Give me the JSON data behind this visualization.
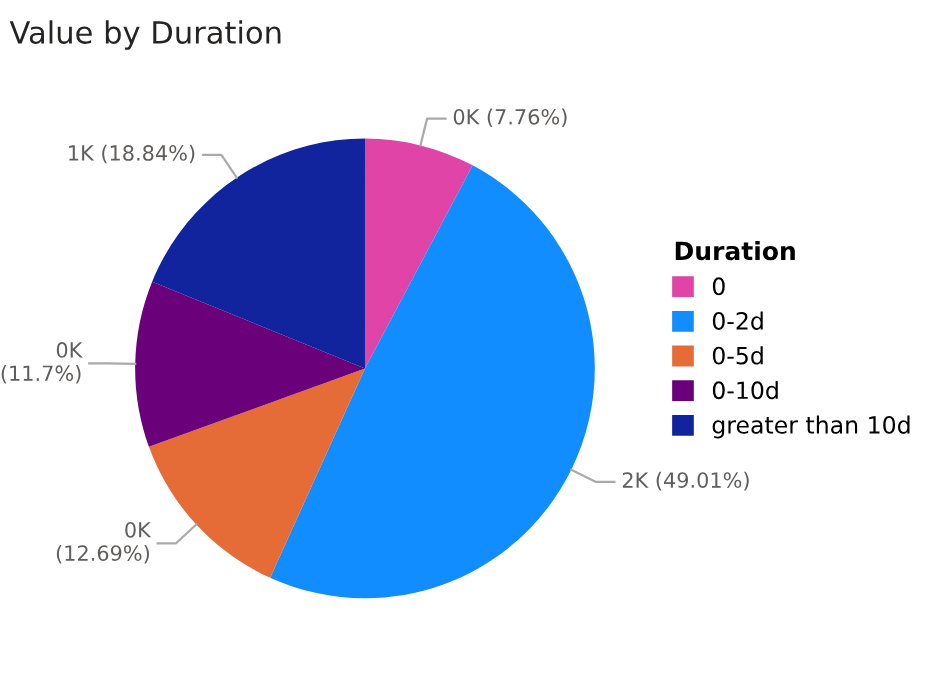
{
  "chart_data": {
    "type": "pie",
    "title": "Value by Duration",
    "legend_title": "Duration",
    "legend": "right",
    "categories": [
      "0",
      "0-2d",
      "0-5d",
      "0-10d",
      "greater than 10d"
    ],
    "values": [
      7.76,
      49.01,
      12.69,
      11.7,
      18.84
    ],
    "colors": [
      "#e044a7",
      "#118dff",
      "#e66c37",
      "#6b007b",
      "#12239e"
    ],
    "value_labels": [
      "0K (7.76%)",
      "2K (49.01%)",
      "0K (12.69%)",
      "0K (11.7%)",
      "1K (18.84%)"
    ]
  }
}
